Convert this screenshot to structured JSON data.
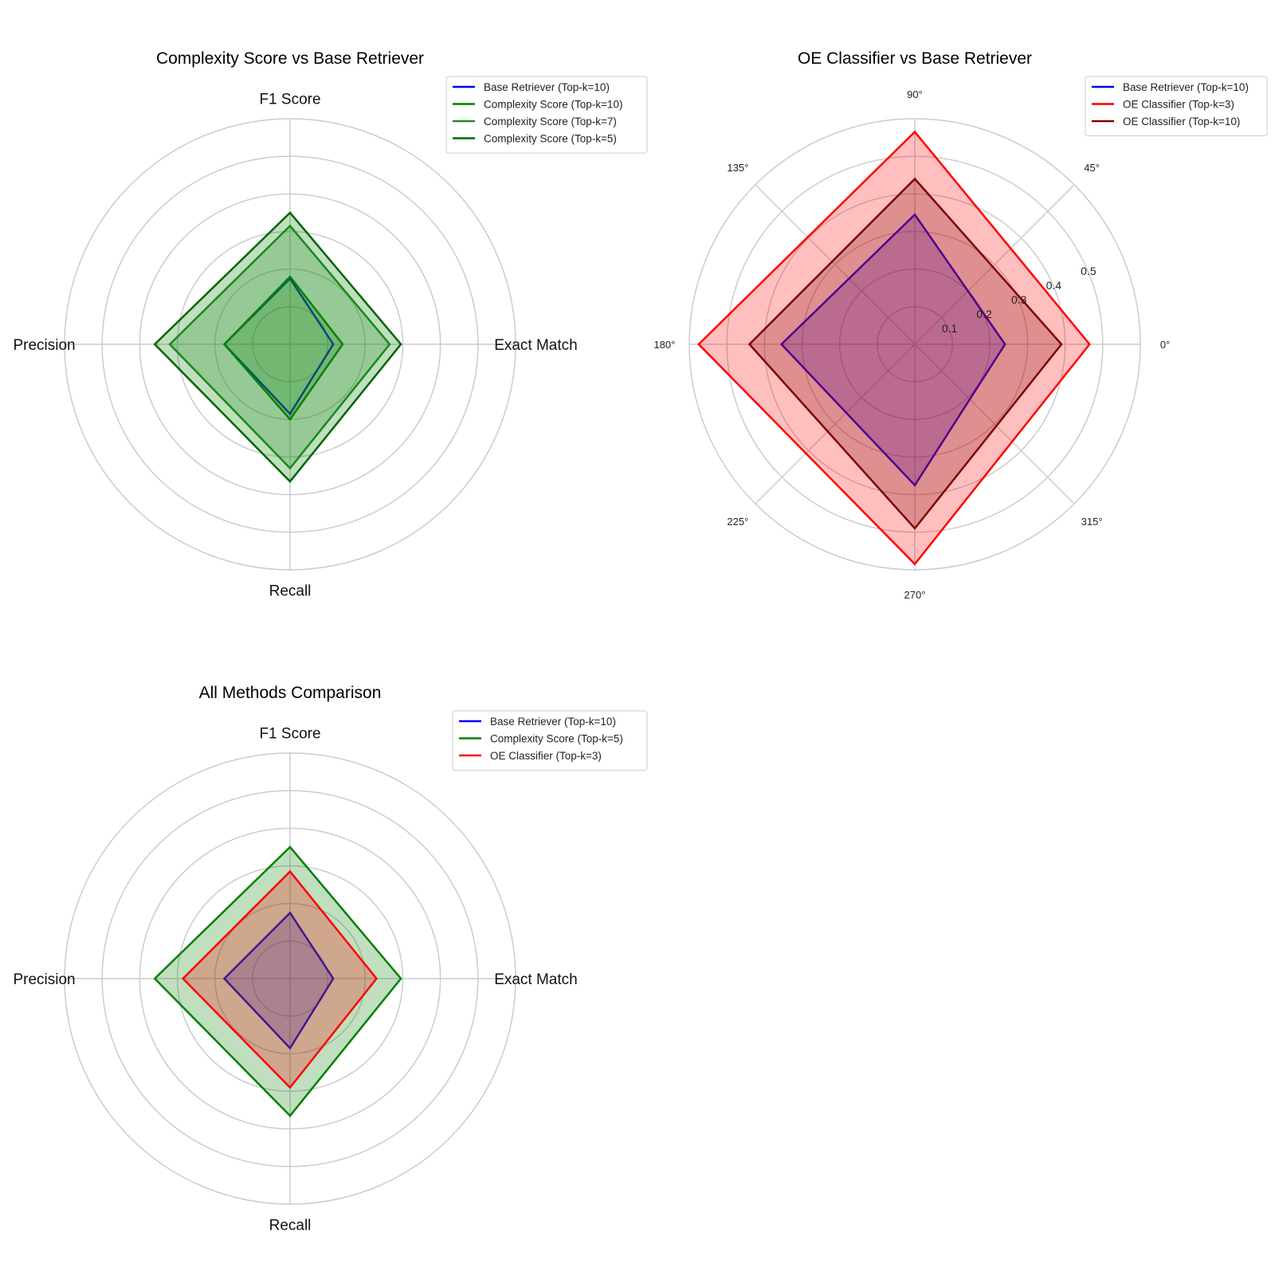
{
  "colors": {
    "grid": "#cccccc",
    "base": "#0000ff",
    "green": "#008000",
    "forest": "#228b22",
    "darkgreen": "#006400",
    "red": "#ff0000",
    "darkred": "#800000"
  },
  "chart_data": [
    {
      "type": "radar",
      "title": "Complexity Score vs Base Retriever",
      "axes": [
        "F1 Score",
        "Precision",
        "Recall",
        "Exact Match"
      ],
      "rmax": 0.6,
      "grid_rings": [
        0.1,
        0.2,
        0.3,
        0.4,
        0.5,
        0.6
      ],
      "ring_labels_shown": false,
      "legend_position": "top-right",
      "series": [
        {
          "name": "Base Retriever (Top-k=10)",
          "values": [
            0.175,
            0.175,
            0.185,
            0.115
          ],
          "color": "#0000ff",
          "fill": "none",
          "fill_opacity": 0
        },
        {
          "name": "Complexity Score (Top-k=10)",
          "values": [
            0.18,
            0.175,
            0.2,
            0.14
          ],
          "color": "#008000",
          "fill": "#008000",
          "fill_opacity": 0.25
        },
        {
          "name": "Complexity Score (Top-k=7)",
          "values": [
            0.315,
            0.32,
            0.33,
            0.265
          ],
          "color": "#228b22",
          "fill": "#228b22",
          "fill_opacity": 0.25
        },
        {
          "name": "Complexity Score (Top-k=5)",
          "values": [
            0.35,
            0.36,
            0.365,
            0.295
          ],
          "color": "#006400",
          "fill": "#008000",
          "fill_opacity": 0.25
        }
      ]
    },
    {
      "type": "radar",
      "title": "OE Classifier vs Base Retriever",
      "axes": [
        "90°",
        "180°",
        "270°",
        "0°"
      ],
      "angle_labels": [
        "0°",
        "45°",
        "90°",
        "135°",
        "180°",
        "225°",
        "270°",
        "315°"
      ],
      "rmax": 0.6,
      "grid_rings": [
        0.1,
        0.2,
        0.3,
        0.4,
        0.5,
        0.6
      ],
      "ring_labels": [
        "0.1",
        "0.2",
        "0.3",
        "0.4",
        "0.5"
      ],
      "ring_labels_shown": true,
      "legend_position": "top-right",
      "series": [
        {
          "name": "Base Retriever (Top-k=10)",
          "values": [
            0.345,
            0.355,
            0.375,
            0.24
          ],
          "color": "#0000ff",
          "fill": "#0000ff",
          "fill_opacity": 0.25
        },
        {
          "name": "OE Classifier (Top-k=3)",
          "values": [
            0.565,
            0.575,
            0.585,
            0.465
          ],
          "color": "#ff0000",
          "fill": "#ff0000",
          "fill_opacity": 0.25
        },
        {
          "name": "OE Classifier (Top-k=10)",
          "values": [
            0.44,
            0.44,
            0.49,
            0.39
          ],
          "color": "#800000",
          "fill": "#800000",
          "fill_opacity": 0.25
        }
      ]
    },
    {
      "type": "radar",
      "title": "All Methods Comparison",
      "axes": [
        "F1 Score",
        "Precision",
        "Recall",
        "Exact Match"
      ],
      "rmax": 0.6,
      "grid_rings": [
        0.1,
        0.2,
        0.3,
        0.4,
        0.5,
        0.6
      ],
      "ring_labels_shown": false,
      "legend_position": "top-right",
      "series": [
        {
          "name": "Base Retriever (Top-k=10)",
          "values": [
            0.175,
            0.175,
            0.185,
            0.115
          ],
          "color": "#0000ff",
          "fill": "#0000ff",
          "fill_opacity": 0.25
        },
        {
          "name": "Complexity Score (Top-k=5)",
          "values": [
            0.35,
            0.36,
            0.365,
            0.295
          ],
          "color": "#008000",
          "fill": "#008000",
          "fill_opacity": 0.25
        },
        {
          "name": "OE Classifier (Top-k=3)",
          "values": [
            0.285,
            0.285,
            0.29,
            0.23
          ],
          "color": "#ff0000",
          "fill": "#ff0000",
          "fill_opacity": 0.25
        }
      ]
    }
  ]
}
